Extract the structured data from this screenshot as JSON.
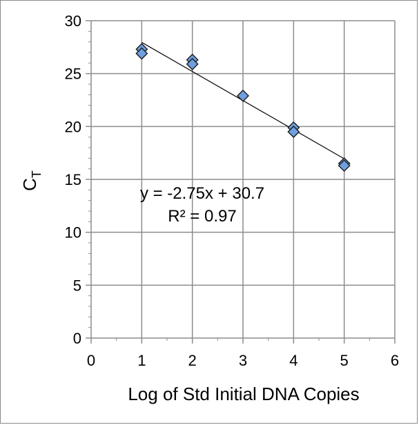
{
  "chart_data": {
    "type": "scatter",
    "title": "",
    "xlabel": "Log of Std Initial DNA Copies",
    "ylabel_main": "C",
    "ylabel_sub": "T",
    "xlim": [
      0,
      6
    ],
    "ylim": [
      0,
      30
    ],
    "x_ticks": [
      0,
      1,
      2,
      3,
      4,
      5,
      6
    ],
    "y_ticks": [
      0,
      5,
      10,
      15,
      20,
      25,
      30
    ],
    "grid": true,
    "points": [
      {
        "x": 1,
        "y": 27.3
      },
      {
        "x": 1,
        "y": 26.9
      },
      {
        "x": 2,
        "y": 26.3
      },
      {
        "x": 2,
        "y": 25.9
      },
      {
        "x": 3,
        "y": 22.9
      },
      {
        "x": 4,
        "y": 19.9
      },
      {
        "x": 4,
        "y": 19.5
      },
      {
        "x": 5,
        "y": 16.5
      },
      {
        "x": 5,
        "y": 16.3
      }
    ],
    "trendline": {
      "slope": -2.75,
      "intercept": 30.7,
      "x_range": [
        1,
        5
      ]
    },
    "marker_color": "#6f9fde",
    "equation_label": "y = -2.75x + 30.7",
    "r2_label": "R² = 0.97"
  }
}
